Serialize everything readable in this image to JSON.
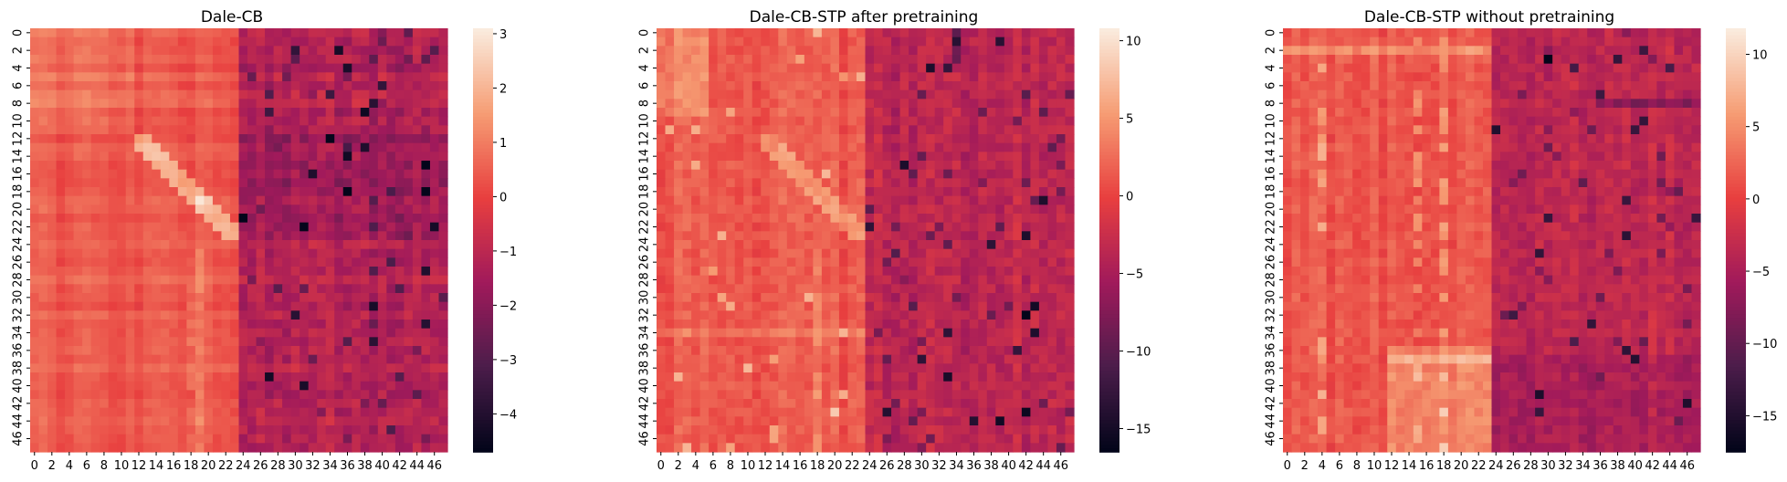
{
  "chart_data": [
    {
      "type": "heatmap",
      "title": "Dale-CB",
      "rows": 48,
      "cols": 48,
      "x_tick_labels": [
        "0",
        "2",
        "4",
        "6",
        "8",
        "10",
        "12",
        "14",
        "16",
        "18",
        "20",
        "22",
        "24",
        "26",
        "28",
        "30",
        "32",
        "34",
        "36",
        "38",
        "40",
        "42",
        "44",
        "46"
      ],
      "y_tick_labels": [
        "0",
        "2",
        "4",
        "6",
        "8",
        "10",
        "12",
        "14",
        "16",
        "18",
        "20",
        "22",
        "24",
        "26",
        "28",
        "30",
        "32",
        "34",
        "36",
        "38",
        "40",
        "42",
        "44",
        "46"
      ],
      "colorbar": {
        "vmin": -4.7,
        "vmax": 3.1,
        "ticks": [
          -4,
          -3,
          -2,
          -1,
          0,
          1,
          2,
          3
        ]
      },
      "colormap": [
        "#03051a",
        "#4c1d4b",
        "#a11a5b",
        "#e83f3f",
        "#f69c73",
        "#faebdd"
      ],
      "description_of_values": {
        "left_block_mean": 0.45,
        "right_block_mean": -1.2,
        "diagonal_peak": 3.0,
        "extreme_low": -4.6
      }
    },
    {
      "type": "heatmap",
      "title": "Dale-CB-STP after pretraining",
      "rows": 48,
      "cols": 48,
      "x_tick_labels": [
        "0",
        "2",
        "4",
        "6",
        "8",
        "10",
        "12",
        "14",
        "16",
        "18",
        "20",
        "22",
        "24",
        "26",
        "28",
        "30",
        "32",
        "34",
        "36",
        "38",
        "40",
        "42",
        "44",
        "46"
      ],
      "y_tick_labels": [
        "0",
        "2",
        "4",
        "6",
        "8",
        "10",
        "12",
        "14",
        "16",
        "18",
        "20",
        "22",
        "24",
        "26",
        "28",
        "30",
        "32",
        "34",
        "36",
        "38",
        "40",
        "42",
        "44",
        "46"
      ],
      "colorbar": {
        "vmin": -16.5,
        "vmax": 10.8,
        "ticks": [
          -15,
          -10,
          -5,
          0,
          5,
          10
        ]
      },
      "colormap": [
        "#03051a",
        "#4c1d4b",
        "#a11a5b",
        "#e83f3f",
        "#f69c73",
        "#faebdd"
      ],
      "description_of_values": {
        "left_block_mean": 1.5,
        "right_block_mean": -3.5,
        "diagonal_peak": 9.5,
        "extreme_low": -16.0
      }
    },
    {
      "type": "heatmap",
      "title": "Dale-CB-STP without pretraining",
      "rows": 48,
      "cols": 48,
      "x_tick_labels": [
        "0",
        "2",
        "4",
        "6",
        "8",
        "10",
        "12",
        "14",
        "16",
        "18",
        "20",
        "22",
        "24",
        "26",
        "28",
        "30",
        "32",
        "34",
        "36",
        "38",
        "40",
        "42",
        "44",
        "46"
      ],
      "y_tick_labels": [
        "0",
        "2",
        "4",
        "6",
        "8",
        "10",
        "12",
        "14",
        "16",
        "18",
        "20",
        "22",
        "24",
        "26",
        "28",
        "30",
        "32",
        "34",
        "36",
        "38",
        "40",
        "42",
        "44",
        "46"
      ],
      "colorbar": {
        "vmin": -17.5,
        "vmax": 11.8,
        "ticks": [
          -15,
          -10,
          -5,
          0,
          5,
          10
        ]
      },
      "colormap": [
        "#03051a",
        "#4c1d4b",
        "#a11a5b",
        "#e83f3f",
        "#f69c73",
        "#faebdd"
      ],
      "description_of_values": {
        "left_block_mean": 1.6,
        "right_block_mean": -3.2,
        "bright_row_37_value": 9.0,
        "extreme_low": -17.0
      }
    }
  ]
}
